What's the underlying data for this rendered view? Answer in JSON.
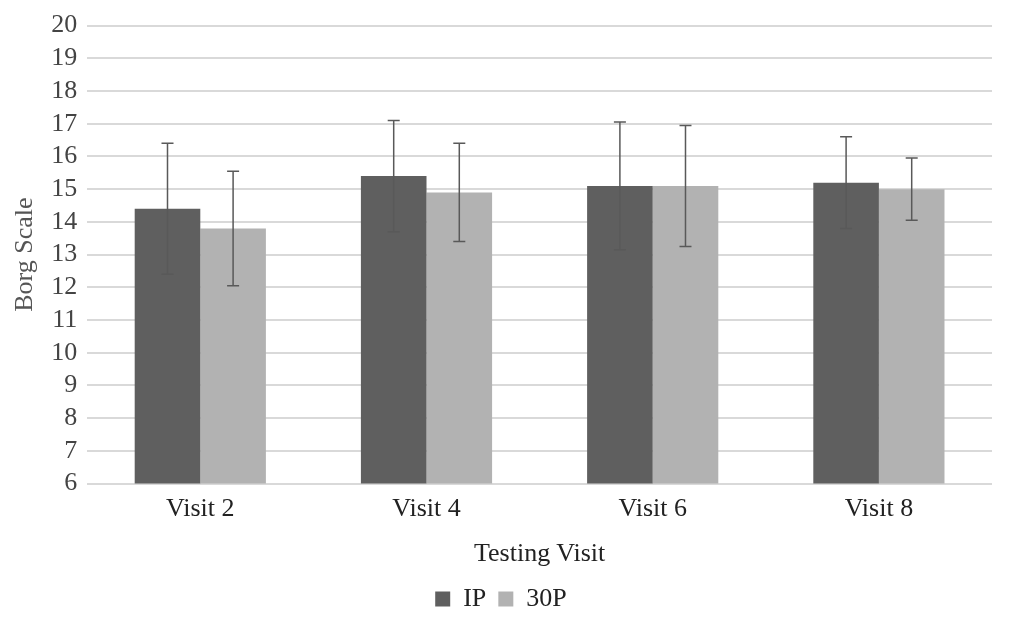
{
  "chart_data": {
    "type": "bar",
    "xlabel": "Testing Visit",
    "ylabel": "Borg Scale",
    "categories": [
      "Visit 2",
      "Visit 4",
      "Visit 6",
      "Visit 8"
    ],
    "series": [
      {
        "name": "IP",
        "color": "#5f5f5f",
        "values": [
          14.4,
          15.4,
          15.1,
          15.2
        ],
        "errors": [
          2.0,
          1.7,
          1.95,
          1.4
        ]
      },
      {
        "name": "30P",
        "color": "#b2b2b2",
        "values": [
          13.8,
          14.9,
          15.1,
          15.0
        ],
        "errors": [
          1.75,
          1.5,
          1.85,
          0.95
        ]
      }
    ],
    "ylim": [
      6,
      20
    ],
    "yticks": [
      6,
      7,
      8,
      9,
      10,
      11,
      12,
      13,
      14,
      15,
      16,
      17,
      18,
      19,
      20
    ],
    "grid": "y",
    "legend": "bottom"
  }
}
